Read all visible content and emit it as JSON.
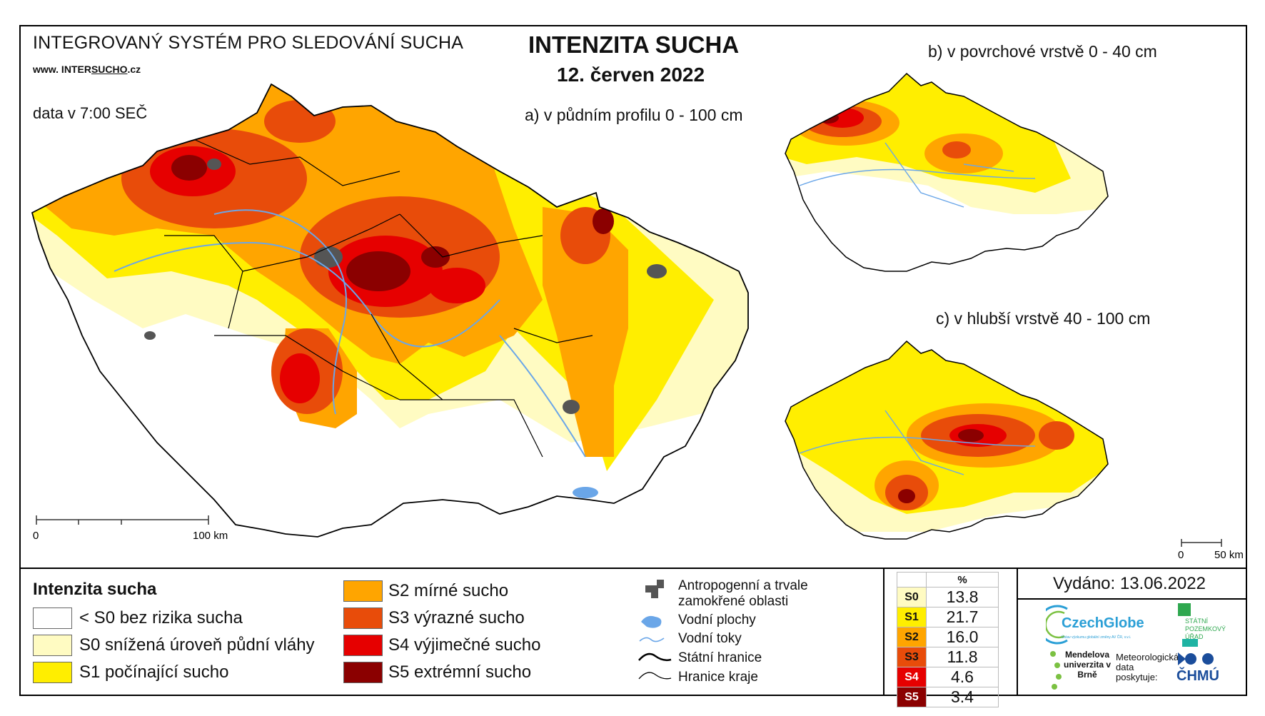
{
  "header": {
    "org_title": "INTEGROVANÝ SYSTÉM PRO SLEDOVÁNÍ SUCHA",
    "website_prefix": "www. INTER",
    "website_mid": "SUCHO",
    "website_suffix": ".cz",
    "data_time": "data v 7:00 SEČ",
    "main_title": "INTENZITA SUCHA",
    "date": "12. červen 2022"
  },
  "maps": {
    "a_subtitle": "a) v půdním profilu 0 - 100 cm",
    "b_subtitle": "b) v povrchové vrstvě 0 - 40 cm",
    "c_subtitle": "c) v hlubší vrstvě 40 - 100 cm",
    "scale_main": {
      "start": "0",
      "end": "100 km"
    },
    "scale_small": {
      "start": "0",
      "end": "50 km"
    }
  },
  "legend": {
    "title": "Intenzita sucha",
    "items": [
      {
        "label": "< S0 bez rizika sucha",
        "color": "#ffffff"
      },
      {
        "label": "S0 snížená úroveň půdní vláhy",
        "color": "#fffbc2"
      },
      {
        "label": "S1 počínající sucho",
        "color": "#ffee00"
      },
      {
        "label": "S2 mírné sucho",
        "color": "#ffa500"
      },
      {
        "label": "S3 výrazné sucho",
        "color": "#e84c0a"
      },
      {
        "label": "S4 výjimečné sucho",
        "color": "#e60000"
      },
      {
        "label": "S5 extrémní sucho",
        "color": "#8b0000"
      }
    ],
    "other": {
      "anthropogenic": "Antropogenní a trvale zamokřené oblasti",
      "water_bodies": "Vodní plochy",
      "streams": "Vodní toky",
      "state_border": "Státní hranice",
      "region_border": "Hranice kraje"
    }
  },
  "percent_table": {
    "header": "%",
    "rows": [
      {
        "class": "S0",
        "value": "13.8",
        "color": "#fffbc2"
      },
      {
        "class": "S1",
        "value": "21.7",
        "color": "#ffee00"
      },
      {
        "class": "S2",
        "value": "16.0",
        "color": "#ffa500"
      },
      {
        "class": "S3",
        "value": "11.8",
        "color": "#e84c0a"
      },
      {
        "class": "S4",
        "value": "4.6",
        "color": "#e60000"
      },
      {
        "class": "S5",
        "value": "3.4",
        "color": "#8b0000"
      }
    ]
  },
  "footer": {
    "issued": "Vydáno: 13.06.2022",
    "czechglobe": "CzechGlobe",
    "czechglobe_sub": "Ústav výzkumu globální změny AV ČR, v.v.i.",
    "spu": "STÁTNÍ POZEMKOVÝ ÚŘAD",
    "mendelu": "Mendelova univerzita v Brně",
    "met_data": "Meteorologická data poskytuje:",
    "chmu": "ČHMÚ"
  }
}
